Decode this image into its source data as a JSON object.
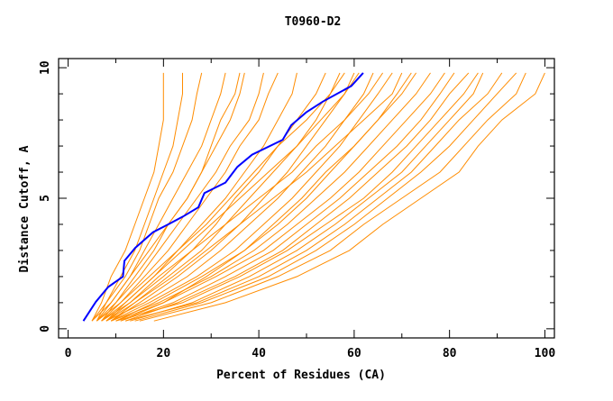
{
  "chart_data": {
    "type": "line",
    "title": "T0960-D2",
    "xlabel": "Percent of Residues (CA)",
    "ylabel": "Distance Cutoff, A",
    "xlim": [
      -2,
      102
    ],
    "ylim": [
      -0.35,
      10.35
    ],
    "xticks": [
      0,
      20,
      40,
      60,
      80,
      100
    ],
    "xminor": [
      10,
      30,
      50,
      70,
      90
    ],
    "yticks": [
      0,
      5,
      10
    ],
    "yminor": [
      1,
      2,
      3,
      4,
      6,
      7,
      8,
      9
    ],
    "grid": false,
    "legend": "none",
    "colors": {
      "others": "#ff8c00",
      "highlight": "#0000ff",
      "frame": "#000000"
    },
    "y_levels": [
      0.3,
      1,
      2,
      3,
      4,
      5,
      6,
      7,
      8,
      9,
      9.8
    ],
    "other_series_x": [
      [
        5,
        7,
        9,
        12,
        14,
        16,
        18,
        19,
        20,
        20,
        20
      ],
      [
        6,
        8,
        11,
        14,
        16,
        18,
        20,
        22,
        23,
        24,
        24
      ],
      [
        5,
        8,
        12,
        15,
        17,
        19,
        22,
        24,
        26,
        27,
        28
      ],
      [
        6,
        9,
        13,
        16,
        19,
        22,
        25,
        28,
        30,
        32,
        33
      ],
      [
        7,
        10,
        14,
        18,
        21,
        25,
        28,
        31,
        34,
        36,
        37
      ],
      [
        6,
        10,
        15,
        19,
        23,
        27,
        31,
        34,
        38,
        40,
        41
      ],
      [
        7,
        11,
        16,
        21,
        25,
        29,
        33,
        36,
        40,
        42,
        44
      ],
      [
        8,
        12,
        18,
        23,
        28,
        33,
        37,
        41,
        44,
        47,
        48
      ],
      [
        7,
        13,
        20,
        26,
        31,
        35,
        40,
        44,
        48,
        52,
        54
      ],
      [
        8,
        14,
        21,
        28,
        33,
        38,
        43,
        48,
        52,
        55,
        57
      ],
      [
        9,
        15,
        23,
        30,
        36,
        41,
        46,
        50,
        54,
        58,
        61
      ],
      [
        8,
        16,
        25,
        32,
        38,
        44,
        49,
        54,
        58,
        62,
        64
      ],
      [
        9,
        17,
        27,
        35,
        41,
        47,
        52,
        57,
        61,
        65,
        68
      ],
      [
        10,
        18,
        28,
        37,
        44,
        50,
        55,
        60,
        65,
        69,
        72
      ],
      [
        9,
        19,
        30,
        39,
        46,
        52,
        58,
        63,
        68,
        73,
        76
      ],
      [
        10,
        20,
        31,
        41,
        48,
        55,
        61,
        66,
        71,
        76,
        79
      ],
      [
        11,
        22,
        33,
        43,
        50,
        57,
        63,
        69,
        74,
        78,
        81
      ],
      [
        12,
        23,
        35,
        45,
        52,
        59,
        65,
        71,
        76,
        80,
        84
      ],
      [
        10,
        24,
        36,
        46,
        54,
        62,
        68,
        73,
        78,
        83,
        86
      ],
      [
        13,
        26,
        38,
        48,
        56,
        63,
        70,
        75,
        80,
        85,
        87
      ],
      [
        12,
        27,
        40,
        50,
        58,
        65,
        72,
        77,
        82,
        88,
        91
      ],
      [
        14,
        28,
        42,
        52,
        60,
        67,
        74,
        80,
        85,
        90,
        94
      ],
      [
        15,
        30,
        44,
        55,
        62,
        70,
        78,
        83,
        88,
        94,
        96
      ],
      [
        18,
        33,
        48,
        59,
        66,
        74,
        82,
        86,
        91,
        98,
        100
      ],
      [
        7,
        12,
        18,
        24,
        30,
        36,
        42,
        48,
        53,
        58,
        60
      ],
      [
        6,
        11,
        17,
        23,
        29,
        34,
        39,
        44,
        50,
        55,
        58
      ],
      [
        8,
        13,
        19,
        26,
        33,
        40,
        47,
        52,
        58,
        63,
        66
      ],
      [
        9,
        14,
        22,
        29,
        36,
        43,
        50,
        56,
        62,
        68,
        70
      ],
      [
        11,
        20,
        29,
        37,
        43,
        49,
        54,
        60,
        65,
        70,
        73
      ],
      [
        5,
        9,
        13,
        17,
        21,
        25,
        28,
        30,
        32,
        35,
        36
      ]
    ],
    "highlight_series": [
      [
        3.2,
        0.3
      ],
      [
        5.8,
        1.03
      ],
      [
        8.4,
        1.6
      ],
      [
        11.5,
        2.0
      ],
      [
        11.8,
        2.6
      ],
      [
        14.1,
        3.1
      ],
      [
        17.8,
        3.7
      ],
      [
        21.0,
        4.0
      ],
      [
        24.1,
        4.3
      ],
      [
        27.3,
        4.65
      ],
      [
        28.6,
        5.2
      ],
      [
        33.0,
        5.6
      ],
      [
        35.5,
        6.2
      ],
      [
        38.6,
        6.67
      ],
      [
        45.0,
        7.24
      ],
      [
        46.8,
        7.8
      ],
      [
        50.0,
        8.3
      ],
      [
        53.4,
        8.7
      ],
      [
        59.4,
        9.3
      ],
      [
        61.9,
        9.8
      ]
    ]
  }
}
